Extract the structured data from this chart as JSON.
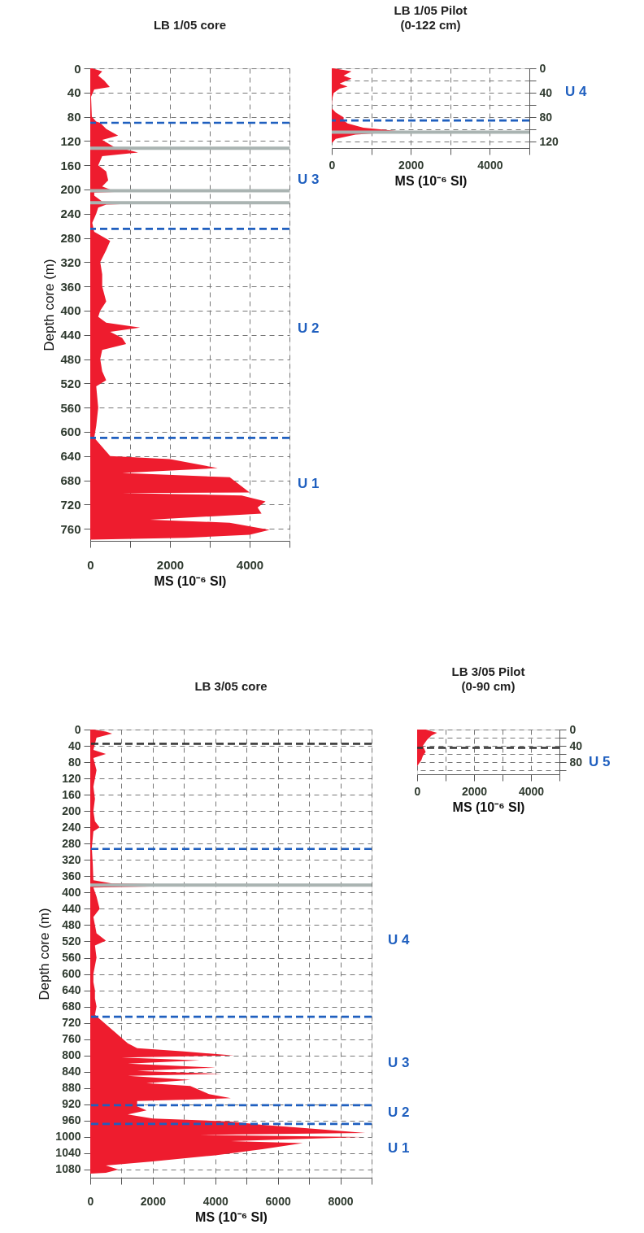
{
  "chart_data": [
    {
      "type": "area",
      "orientation": "horizontal",
      "title": "LB 1/05 core",
      "xlabel": "MS (10⁻⁶ SI)",
      "ylabel": "Depth core (m)",
      "x": [
        0,
        5,
        12,
        20,
        31,
        35,
        47,
        80,
        88,
        90,
        100,
        111,
        118,
        130,
        134,
        139,
        145,
        160,
        170,
        185,
        195,
        200,
        202,
        205,
        210,
        220,
        222,
        225,
        230,
        240,
        255,
        270,
        285,
        300,
        320,
        340,
        360,
        385,
        400,
        410,
        420,
        428,
        435,
        445,
        455,
        465,
        480,
        500,
        515,
        525,
        560,
        590,
        610,
        625,
        640,
        645,
        660,
        668,
        675,
        690,
        700,
        701,
        705,
        715,
        725,
        735,
        745,
        750,
        762,
        770,
        775,
        778
      ],
      "series": [
        {
          "color": "#ee1c2e",
          "values": [
            50,
            300,
            200,
            350,
            490,
            100,
            20,
            40,
            150,
            250,
            400,
            700,
            300,
            600,
            900,
            1200,
            300,
            200,
            400,
            450,
            300,
            500,
            1600,
            100,
            100,
            300,
            2000,
            400,
            200,
            150,
            50,
            100,
            500,
            400,
            250,
            300,
            300,
            400,
            250,
            200,
            400,
            1250,
            500,
            800,
            900,
            300,
            250,
            300,
            400,
            150,
            200,
            150,
            100,
            300,
            500,
            2000,
            3200,
            800,
            3500,
            3800,
            4000,
            800,
            3800,
            4400,
            4200,
            4300,
            1500,
            3500,
            4500,
            4000,
            2400,
            0
          ]
        }
      ],
      "xlim": [
        0,
        5000
      ],
      "xticks": [
        0,
        {
          "value": 1000,
          "label": null
        },
        2000,
        {
          "value": 3000,
          "label": null
        },
        4000,
        {
          "value": 5000,
          "label": null
        }
      ],
      "ylim": [
        780,
        0
      ],
      "yticks": [
        0,
        40,
        80,
        120,
        160,
        200,
        240,
        280,
        320,
        360,
        400,
        440,
        480,
        520,
        560,
        600,
        640,
        680,
        720,
        760
      ],
      "grid": true,
      "ref_lines": [
        {
          "axis": "y",
          "value": 90,
          "color": "#1f5fbf",
          "line_style": "dashed"
        },
        {
          "axis": "y",
          "value": 265,
          "color": "#1f5fbf",
          "line_style": "dashed"
        },
        {
          "axis": "y",
          "value": 610,
          "color": "#1f5fbf",
          "line_style": "dashed"
        },
        {
          "axis": "y",
          "value": 132,
          "color": "#aab4b2",
          "line_style": "solid"
        },
        {
          "axis": "y",
          "value": 202,
          "color": "#aab4b2",
          "line_style": "solid"
        },
        {
          "axis": "y",
          "value": 222,
          "color": "#aab4b2",
          "line_style": "solid"
        }
      ],
      "annotations": [
        "U 3",
        "U 2",
        "U 1"
      ]
    },
    {
      "type": "area",
      "orientation": "horizontal",
      "title": "LB 1/05 Pilot",
      "subtitle": "(0-122 cm)",
      "xlabel": "MS (10⁻⁶ SI)",
      "x": [
        0,
        5,
        12,
        17,
        25,
        30,
        33,
        40,
        50,
        65,
        72,
        80,
        85,
        90,
        97,
        103,
        108,
        115,
        122
      ],
      "series": [
        {
          "color": "#ee1c2e",
          "values": [
            50,
            500,
            300,
            500,
            200,
            400,
            200,
            50,
            10,
            0,
            100,
            300,
            300,
            400,
            800,
            1800,
            600,
            100,
            0
          ]
        }
      ],
      "xlim": [
        0,
        5000
      ],
      "xticks": [
        0,
        {
          "value": 1000,
          "label": null
        },
        2000,
        {
          "value": 3000,
          "label": null
        },
        4000,
        {
          "value": 5000,
          "label": null
        }
      ],
      "ylim": [
        130,
        0
      ],
      "yticks": [
        0,
        {
          "value": 20,
          "label": null
        },
        40,
        {
          "value": 60,
          "label": null
        },
        80,
        {
          "value": 100,
          "label": null
        },
        120
      ],
      "grid": true,
      "ref_lines": [
        {
          "axis": "y",
          "value": 85,
          "color": "#1f5fbf",
          "line_style": "dashed"
        },
        {
          "axis": "y",
          "value": 104,
          "color": "#aab4b2",
          "line_style": "solid"
        }
      ],
      "annotations": [
        "U 4"
      ]
    },
    {
      "type": "area",
      "orientation": "horizontal",
      "title": "LB 3/05 core",
      "xlabel": "MS (10⁻⁶ SI)",
      "ylabel": "Depth core (m)",
      "x": [
        0,
        5,
        10,
        20,
        35,
        50,
        60,
        70,
        100,
        120,
        140,
        170,
        200,
        225,
        240,
        250,
        290,
        330,
        370,
        378,
        382,
        388,
        410,
        440,
        460,
        500,
        518,
        530,
        560,
        600,
        620,
        640,
        660,
        680,
        700,
        710,
        730,
        750,
        770,
        782,
        790,
        800,
        805,
        812,
        820,
        830,
        838,
        845,
        850,
        860,
        868,
        875,
        885,
        895,
        905,
        912,
        925,
        935,
        945,
        955,
        962,
        970,
        980,
        990,
        995,
        1000,
        1010,
        1015,
        1030,
        1045,
        1060,
        1070,
        1080,
        1088,
        1090
      ],
      "series": [
        {
          "color": "#ee1c2e",
          "values": [
            100,
            500,
            700,
            200,
            150,
            100,
            500,
            100,
            200,
            150,
            100,
            150,
            100,
            150,
            300,
            100,
            50,
            80,
            100,
            700,
            4200,
            100,
            200,
            300,
            100,
            200,
            500,
            150,
            200,
            100,
            100,
            150,
            150,
            200,
            150,
            300,
            600,
            900,
            1200,
            1500,
            3000,
            4600,
            1000,
            3500,
            1200,
            4000,
            1500,
            4200,
            1200,
            3200,
            1800,
            3200,
            3500,
            3800,
            4500,
            1500,
            1500,
            1800,
            1200,
            2000,
            4500,
            5500,
            7200,
            8800,
            3500,
            8700,
            4500,
            6800,
            5500,
            4000,
            2000,
            500,
            900,
            500,
            0
          ]
        }
      ],
      "xlim": [
        0,
        9000
      ],
      "xticks": [
        0,
        {
          "value": 1000,
          "label": null
        },
        2000,
        {
          "value": 3000,
          "label": null
        },
        4000,
        {
          "value": 5000,
          "label": null
        },
        6000,
        {
          "value": 7000,
          "label": null
        },
        8000,
        {
          "value": 9000,
          "label": null
        }
      ],
      "ylim": [
        1100,
        0
      ],
      "yticks": [
        0,
        40,
        80,
        120,
        160,
        200,
        240,
        280,
        320,
        360,
        400,
        440,
        480,
        520,
        560,
        600,
        640,
        680,
        720,
        760,
        800,
        840,
        880,
        920,
        960,
        1000,
        1040,
        1080
      ],
      "grid": true,
      "ref_lines": [
        {
          "axis": "y",
          "value": 35,
          "color": "#333333",
          "line_style": "dashed"
        },
        {
          "axis": "y",
          "value": 293,
          "color": "#1f5fbf",
          "line_style": "dashed"
        },
        {
          "axis": "y",
          "value": 705,
          "color": "#1f5fbf",
          "line_style": "dashed"
        },
        {
          "axis": "y",
          "value": 922,
          "color": "#1f5fbf",
          "line_style": "dashed"
        },
        {
          "axis": "y",
          "value": 968,
          "color": "#1f5fbf",
          "line_style": "dashed"
        },
        {
          "axis": "y",
          "value": 382,
          "color": "#aab4b2",
          "line_style": "solid"
        }
      ],
      "annotations": [
        "U 4",
        "U 3",
        "U 2",
        "U 1"
      ]
    },
    {
      "type": "area",
      "orientation": "horizontal",
      "title": "LB 3/05 Pilot",
      "subtitle": "(0-90 cm)",
      "xlabel": "MS (10⁻⁶ SI)",
      "x": [
        0,
        8,
        15,
        25,
        40,
        55,
        65,
        75,
        85,
        90
      ],
      "series": [
        {
          "color": "#ee1c2e",
          "values": [
            300,
            700,
            500,
            350,
            200,
            300,
            200,
            150,
            50,
            0
          ]
        }
      ],
      "xlim": [
        0,
        5000
      ],
      "xticks": [
        0,
        {
          "value": 1000,
          "label": null
        },
        2000,
        {
          "value": 3000,
          "label": null
        },
        4000,
        {
          "value": 5000,
          "label": null
        }
      ],
      "ylim": [
        110,
        0
      ],
      "yticks": [
        0,
        {
          "value": 20,
          "label": null
        },
        40,
        {
          "value": 60,
          "label": null
        },
        80,
        {
          "value": 100,
          "label": null
        }
      ],
      "grid": true,
      "ref_lines": [
        {
          "axis": "y",
          "value": 45,
          "color": "#333333",
          "line_style": "dashed"
        }
      ],
      "annotations": [
        "U 5"
      ]
    }
  ]
}
